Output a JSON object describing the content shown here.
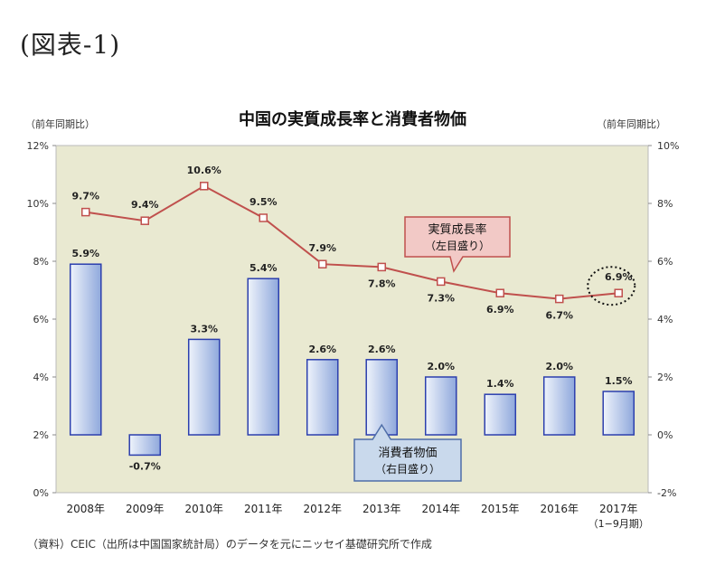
{
  "page_title": "(図表-1)",
  "source_note": "（資料）CEIC（出所は中国国家統計局）のデータを元にニッセイ基礎研究所で作成",
  "colors": {
    "plot_bg": "#e9e9d1",
    "bar_fill_top": "#eef3fb",
    "bar_fill_bottom": "#8fa8dc",
    "bar_stroke": "#2c3fae",
    "line": "#c0504d",
    "marker_fill": "#ffffff"
  },
  "chart_data": {
    "type": "bar",
    "title": "中国の実質成長率と消費者物価",
    "left_axis_unit": "（前年同期比）",
    "right_axis_unit": "（前年同期比）",
    "left_axis": {
      "min": 0,
      "max": 12,
      "step": 2,
      "tick_labels": [
        "0%",
        "2%",
        "4%",
        "6%",
        "8%",
        "10%",
        "12%"
      ]
    },
    "right_axis": {
      "min": -2,
      "max": 10,
      "step": 2,
      "tick_labels": [
        "-2%",
        "0%",
        "2%",
        "4%",
        "6%",
        "8%",
        "10%"
      ]
    },
    "categories": [
      "2008年",
      "2009年",
      "2010年",
      "2011年",
      "2012年",
      "2013年",
      "2014年",
      "2015年",
      "2016年",
      "2017年"
    ],
    "category_sublabels": [
      "",
      "",
      "",
      "",
      "",
      "",
      "",
      "",
      "",
      "（1−9月期）"
    ],
    "series": [
      {
        "name": "実質成長率",
        "sub": "（左目盛り）",
        "type": "line",
        "axis": "left",
        "values": [
          9.7,
          9.4,
          10.6,
          9.5,
          7.9,
          7.8,
          7.3,
          6.9,
          6.7,
          6.9
        ],
        "labels": [
          "9.7%",
          "9.4%",
          "10.6%",
          "9.5%",
          "7.9%",
          "7.8%",
          "7.3%",
          "6.9%",
          "6.7%",
          "6.9%"
        ]
      },
      {
        "name": "消費者物価",
        "sub": "（右目盛り）",
        "type": "bar",
        "axis": "right",
        "values": [
          5.9,
          -0.7,
          3.3,
          5.4,
          2.6,
          2.6,
          2.0,
          1.4,
          2.0,
          1.5
        ],
        "labels": [
          "5.9%",
          "-0.7%",
          "3.3%",
          "5.4%",
          "2.6%",
          "2.6%",
          "2.0%",
          "1.4%",
          "2.0%",
          "1.5%"
        ]
      }
    ],
    "highlight_point_index": 9,
    "grid": false
  }
}
